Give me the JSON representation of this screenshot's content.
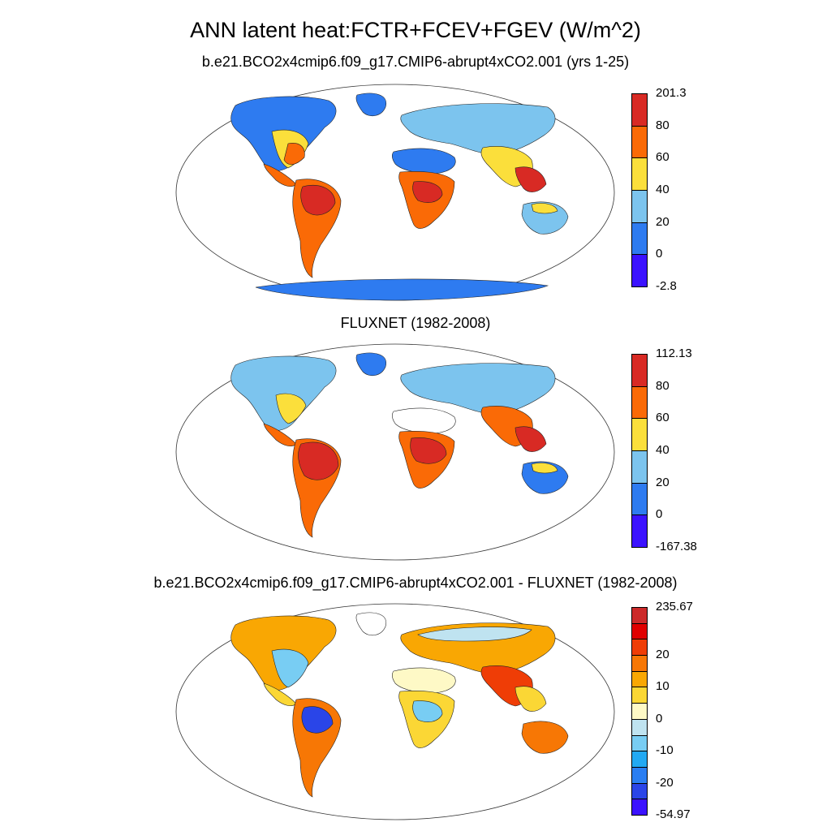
{
  "figure": {
    "title": "ANN latent heat:FCTR+FCEV+FGEV (W/m^2)"
  },
  "panels": [
    {
      "title": "b.e21.BCO2x4cmip6.f09_g17.CMIP6-abrupt4xCO2.001 (yrs 1-25)",
      "colorbar": {
        "colors": [
          "#3b12ff",
          "#2e7bf0",
          "#7cc4ee",
          "#fbdf3b",
          "#fa6a06",
          "#d82a24"
        ],
        "labels": [
          "-2.8",
          "0",
          "20",
          "40",
          "60",
          "80",
          "201.3"
        ]
      }
    },
    {
      "title": "FLUXNET (1982-2008)",
      "colorbar": {
        "colors": [
          "#3b12ff",
          "#2e7bf0",
          "#7cc4ee",
          "#fbdf3b",
          "#fa6a06",
          "#d82a24"
        ],
        "labels": [
          "-167.38",
          "0",
          "20",
          "40",
          "60",
          "80",
          "112.13"
        ]
      }
    },
    {
      "title": "b.e21.BCO2x4cmip6.f09_g17.CMIP6-abrupt4xCO2.001 - FLUXNET (1982-2008)",
      "colorbar": {
        "colors": [
          "#3b12ff",
          "#2a45e8",
          "#2a7ef2",
          "#22a9f3",
          "#78cdf3",
          "#bfe3f0",
          "#fef9c6",
          "#fbd735",
          "#f9a703",
          "#f77705",
          "#ef3d06",
          "#e00000",
          "#cc2a2a"
        ],
        "labels": [
          "-54.97",
          "",
          "-20",
          "",
          "-10",
          "",
          "0",
          "",
          "10",
          "",
          "20",
          "",
          "",
          "235.67"
        ]
      }
    }
  ]
}
